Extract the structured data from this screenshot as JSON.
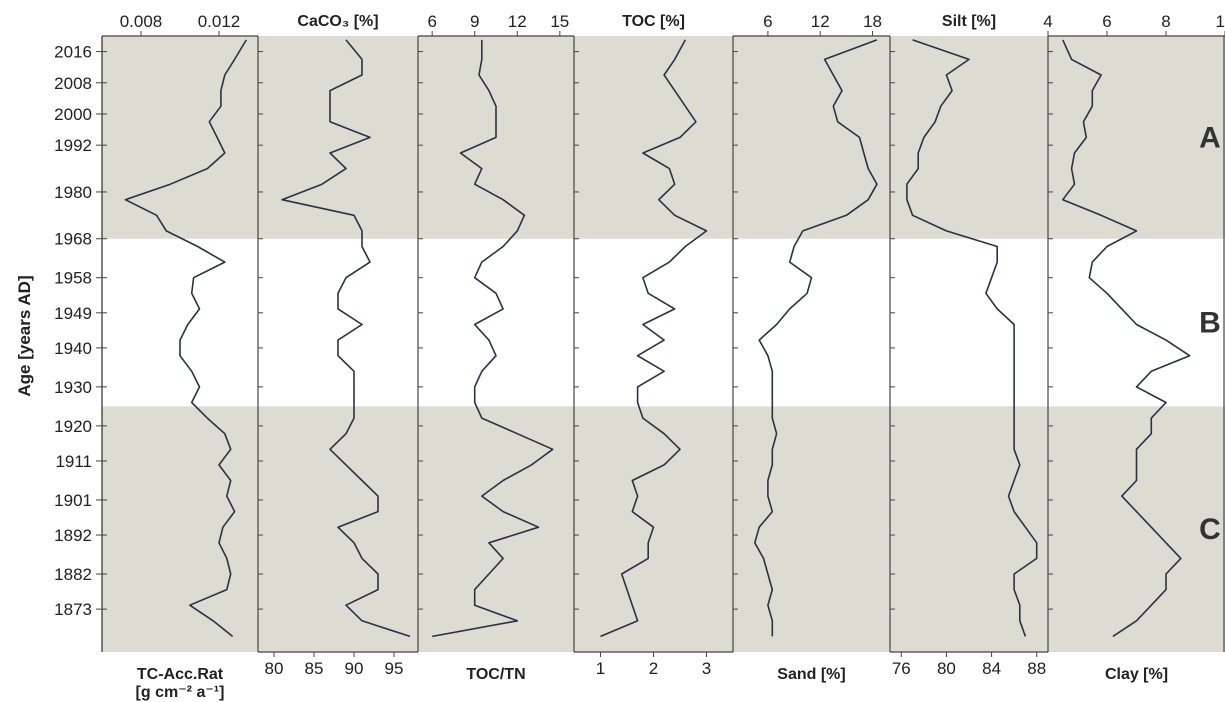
{
  "chart_data": {
    "type": "line",
    "orientation": "vertical-depth-profile",
    "y_axis": {
      "label": "Age [years AD]",
      "ticks": [
        2016,
        2008,
        2000,
        1992,
        1980,
        1968,
        1958,
        1949,
        1940,
        1930,
        1920,
        1911,
        1901,
        1892,
        1882,
        1873
      ],
      "samples": [
        2019,
        2014,
        2010,
        2006,
        2002,
        1998,
        1994,
        1990,
        1986,
        1982,
        1978,
        1974,
        1970,
        1966,
        1962,
        1958,
        1954,
        1950,
        1946,
        1942,
        1938,
        1934,
        1930,
        1926,
        1922,
        1918,
        1914,
        1910,
        1906,
        1902,
        1898,
        1894,
        1890,
        1886,
        1882,
        1878,
        1874,
        1870,
        1866
      ]
    },
    "zones": [
      {
        "label": "A",
        "from": 1968,
        "to": 2020,
        "shaded": true
      },
      {
        "label": "B",
        "from": 1925,
        "to": 1968,
        "shaded": false
      },
      {
        "label": "C",
        "from": 1862,
        "to": 1925,
        "shaded": true
      }
    ],
    "panels": [
      {
        "id": "tc",
        "label": "TC-Acc.Rat",
        "label2": "[g cm⁻² a⁻¹]",
        "label_pos": "bottom",
        "ticks_pos": "top",
        "xlim": [
          0.006,
          0.014
        ],
        "ticks": [
          0.008,
          0.012
        ],
        "tick_labels": [
          "0.008",
          "0.012"
        ],
        "values": [
          0.0134,
          0.0128,
          0.0123,
          0.0121,
          0.0121,
          0.0115,
          0.0119,
          0.0123,
          0.0114,
          0.0095,
          0.0072,
          0.0088,
          0.0093,
          0.0109,
          0.0123,
          0.0107,
          0.0106,
          0.011,
          0.0104,
          0.01,
          0.01,
          0.0106,
          0.011,
          0.0106,
          0.0114,
          0.0123,
          0.0126,
          0.012,
          0.0126,
          0.0124,
          0.0128,
          0.0122,
          0.012,
          0.0124,
          0.0126,
          0.0124,
          0.0105,
          0.0117,
          0.0127
        ]
      },
      {
        "id": "caco3",
        "label": "CaCO₃ [%]",
        "label_pos": "top",
        "ticks_pos": "bottom",
        "xlim": [
          78,
          98
        ],
        "ticks": [
          80,
          85,
          90,
          95
        ],
        "tick_labels": [
          "80",
          "85",
          "90",
          "95"
        ],
        "values": [
          89,
          91,
          91,
          87,
          87,
          87,
          92,
          87,
          89,
          86,
          81,
          90,
          91,
          91,
          92,
          89,
          88,
          88,
          91,
          88,
          88,
          90,
          90,
          90,
          90,
          89,
          87,
          89,
          91,
          93,
          93,
          88,
          90,
          91,
          93,
          93,
          89,
          91,
          97
        ]
      },
      {
        "id": "toctn",
        "label": "TOC/TN",
        "label_pos": "bottom",
        "ticks_pos": "top",
        "xlim": [
          5,
          16
        ],
        "ticks": [
          6,
          9,
          12,
          15
        ],
        "tick_labels": [
          "6",
          "9",
          "12",
          "15"
        ],
        "values": [
          9.5,
          9.5,
          9.3,
          10,
          10.5,
          10.5,
          10.5,
          8,
          9.5,
          9,
          11,
          12.5,
          12,
          11,
          9.5,
          9,
          10.5,
          11,
          9,
          10,
          10.5,
          9.5,
          9,
          9,
          9.5,
          12,
          14.5,
          13,
          11,
          9.5,
          11,
          13.5,
          10,
          11,
          10,
          9,
          9,
          12,
          6
        ]
      },
      {
        "id": "toc",
        "label": "TOC [%]",
        "label_pos": "top",
        "ticks_pos": "bottom",
        "xlim": [
          0.5,
          3.5
        ],
        "ticks": [
          1,
          2,
          3
        ],
        "tick_labels": [
          "1",
          "2",
          "3"
        ],
        "values": [
          2.6,
          2.4,
          2.2,
          2.4,
          2.6,
          2.8,
          2.5,
          1.8,
          2.3,
          2.4,
          2.1,
          2.4,
          3.0,
          2.6,
          2.3,
          1.8,
          1.9,
          2.4,
          1.8,
          2.2,
          1.7,
          2.2,
          1.7,
          1.7,
          1.8,
          2.2,
          2.5,
          2.2,
          1.6,
          1.7,
          1.6,
          2.0,
          1.9,
          1.9,
          1.4,
          1.5,
          1.6,
          1.7,
          1.0
        ]
      },
      {
        "id": "sand",
        "label": "Sand [%]",
        "label_pos": "bottom",
        "ticks_pos": "top",
        "xlim": [
          2,
          20
        ],
        "ticks": [
          6,
          12,
          18
        ],
        "tick_labels": [
          "6",
          "12",
          "18"
        ],
        "values": [
          18.5,
          12.5,
          13.5,
          14.5,
          13.5,
          14.0,
          16.5,
          17.0,
          17.5,
          18.5,
          17.5,
          15.0,
          10.0,
          9.0,
          8.5,
          11.0,
          10.5,
          8.5,
          7.0,
          5.0,
          6.0,
          6.5,
          6.5,
          6.5,
          6.5,
          7.0,
          6.5,
          6.5,
          6.0,
          6.0,
          6.5,
          5.0,
          4.5,
          5.5,
          6.0,
          6.5,
          6.0,
          6.5,
          6.5
        ]
      },
      {
        "id": "silt",
        "label": "Silt [%]",
        "label_pos": "top",
        "ticks_pos": "bottom",
        "xlim": [
          75,
          89
        ],
        "ticks": [
          76,
          80,
          84,
          88
        ],
        "tick_labels": [
          "76",
          "80",
          "84",
          "88"
        ],
        "values": [
          77.0,
          82.0,
          80.0,
          80.5,
          79.5,
          79.0,
          78.0,
          77.5,
          77.5,
          76.5,
          76.5,
          77.0,
          80.0,
          84.5,
          84.5,
          84.0,
          83.5,
          84.5,
          86.0,
          86.0,
          86.0,
          86.0,
          86.0,
          86.0,
          86.0,
          86.0,
          86.0,
          86.5,
          86.0,
          85.5,
          86.0,
          87.0,
          88.0,
          88.0,
          86.0,
          86.0,
          86.5,
          86.5,
          87.0
        ]
      },
      {
        "id": "clay",
        "label": "Clay [%]",
        "label_pos": "bottom",
        "ticks_pos": "top",
        "xlim": [
          4,
          10
        ],
        "ticks": [
          4,
          6,
          8,
          10
        ],
        "tick_labels": [
          "4",
          "6",
          "8",
          "10"
        ],
        "values": [
          4.5,
          4.8,
          5.8,
          5.5,
          5.5,
          5.2,
          5.3,
          4.9,
          4.8,
          4.9,
          4.5,
          5.8,
          7.0,
          6.0,
          5.5,
          5.4,
          6.0,
          6.5,
          7.0,
          8.0,
          8.8,
          7.5,
          7.0,
          8.0,
          7.5,
          7.5,
          7.0,
          7.0,
          7.0,
          6.5,
          7.0,
          7.5,
          8.0,
          8.5,
          8.0,
          8.0,
          7.5,
          7.0,
          6.2
        ]
      }
    ]
  }
}
